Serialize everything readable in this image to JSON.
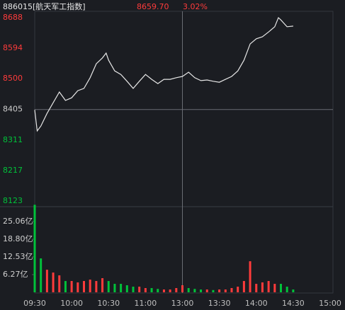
{
  "chart_data": {
    "type": "intraday",
    "title": "886015[航天军工指数]",
    "price_label": "8659.70",
    "change_label": "3.02%",
    "categories": [
      "09:30",
      "10:00",
      "10:30",
      "11:00",
      "13:00",
      "13:30",
      "14:00",
      "14:30",
      "15:00"
    ],
    "ylim": [
      8123,
      8688
    ],
    "yticks": [
      8688,
      8594,
      8500,
      8405,
      8311,
      8217,
      8123
    ],
    "line_color": "#e6e6e6",
    "up_color": "#ff3b3b",
    "down_color": "#00c23a",
    "x": [
      "09:30",
      "09:32",
      "09:35",
      "09:40",
      "09:45",
      "09:50",
      "09:55",
      "10:00",
      "10:05",
      "10:10",
      "10:15",
      "10:20",
      "10:25",
      "10:28",
      "10:30",
      "10:35",
      "10:40",
      "10:45",
      "10:50",
      "10:55",
      "11:00",
      "11:05",
      "11:10",
      "11:15",
      "11:20",
      "11:25",
      "13:00",
      "13:05",
      "13:10",
      "13:15",
      "13:20",
      "13:25",
      "13:30",
      "13:35",
      "13:40",
      "13:45",
      "13:50",
      "13:55",
      "14:00",
      "14:05",
      "14:10",
      "14:15",
      "14:18",
      "14:20",
      "14:25",
      "14:30"
    ],
    "values": [
      8404,
      8339,
      8354,
      8393,
      8426,
      8459,
      8433,
      8441,
      8463,
      8470,
      8503,
      8546,
      8564,
      8579,
      8557,
      8524,
      8513,
      8492,
      8470,
      8492,
      8513,
      8498,
      8485,
      8498,
      8498,
      8503,
      8507,
      8520,
      8503,
      8494,
      8496,
      8492,
      8489,
      8498,
      8507,
      8524,
      8557,
      8607,
      8623,
      8629,
      8644,
      8660,
      8688,
      8681,
      8660,
      8662
    ],
    "volume": {
      "ylim": [
        0,
        31.33
      ],
      "yticks": [
        {
          "value": 25.06,
          "label": "25.06亿"
        },
        {
          "value": 18.8,
          "label": "18.80亿"
        },
        {
          "value": 12.53,
          "label": "12.53亿"
        },
        {
          "value": 6.27,
          "label": "6.27亿"
        }
      ],
      "x": [
        "09:30",
        "09:35",
        "09:40",
        "09:45",
        "09:50",
        "09:55",
        "10:00",
        "10:05",
        "10:10",
        "10:15",
        "10:20",
        "10:25",
        "10:30",
        "10:35",
        "10:40",
        "10:45",
        "10:50",
        "10:55",
        "11:00",
        "11:05",
        "11:10",
        "11:15",
        "11:20",
        "11:25",
        "13:00",
        "13:05",
        "13:10",
        "13:15",
        "13:20",
        "13:25",
        "13:30",
        "13:35",
        "13:40",
        "13:45",
        "13:50",
        "13:55",
        "14:00",
        "14:05",
        "14:10",
        "14:15",
        "14:20",
        "14:25",
        "14:30"
      ],
      "values": [
        31,
        12,
        8,
        7,
        6,
        4,
        4,
        3.5,
        4,
        4.5,
        4,
        5,
        4,
        3,
        3,
        2.5,
        2,
        2,
        1.5,
        1.5,
        1.2,
        1,
        1,
        1.5,
        2.5,
        1.5,
        1.2,
        1,
        1,
        0.8,
        1,
        1,
        1.5,
        2,
        4,
        11,
        3,
        3.5,
        4,
        3,
        3,
        2,
        1
      ],
      "up": [
        false,
        false,
        true,
        true,
        true,
        false,
        true,
        true,
        true,
        true,
        true,
        true,
        false,
        false,
        false,
        false,
        false,
        true,
        true,
        false,
        false,
        true,
        true,
        true,
        true,
        false,
        false,
        false,
        true,
        false,
        true,
        true,
        true,
        true,
        true,
        true,
        true,
        true,
        true,
        true,
        false,
        false,
        false
      ]
    }
  }
}
